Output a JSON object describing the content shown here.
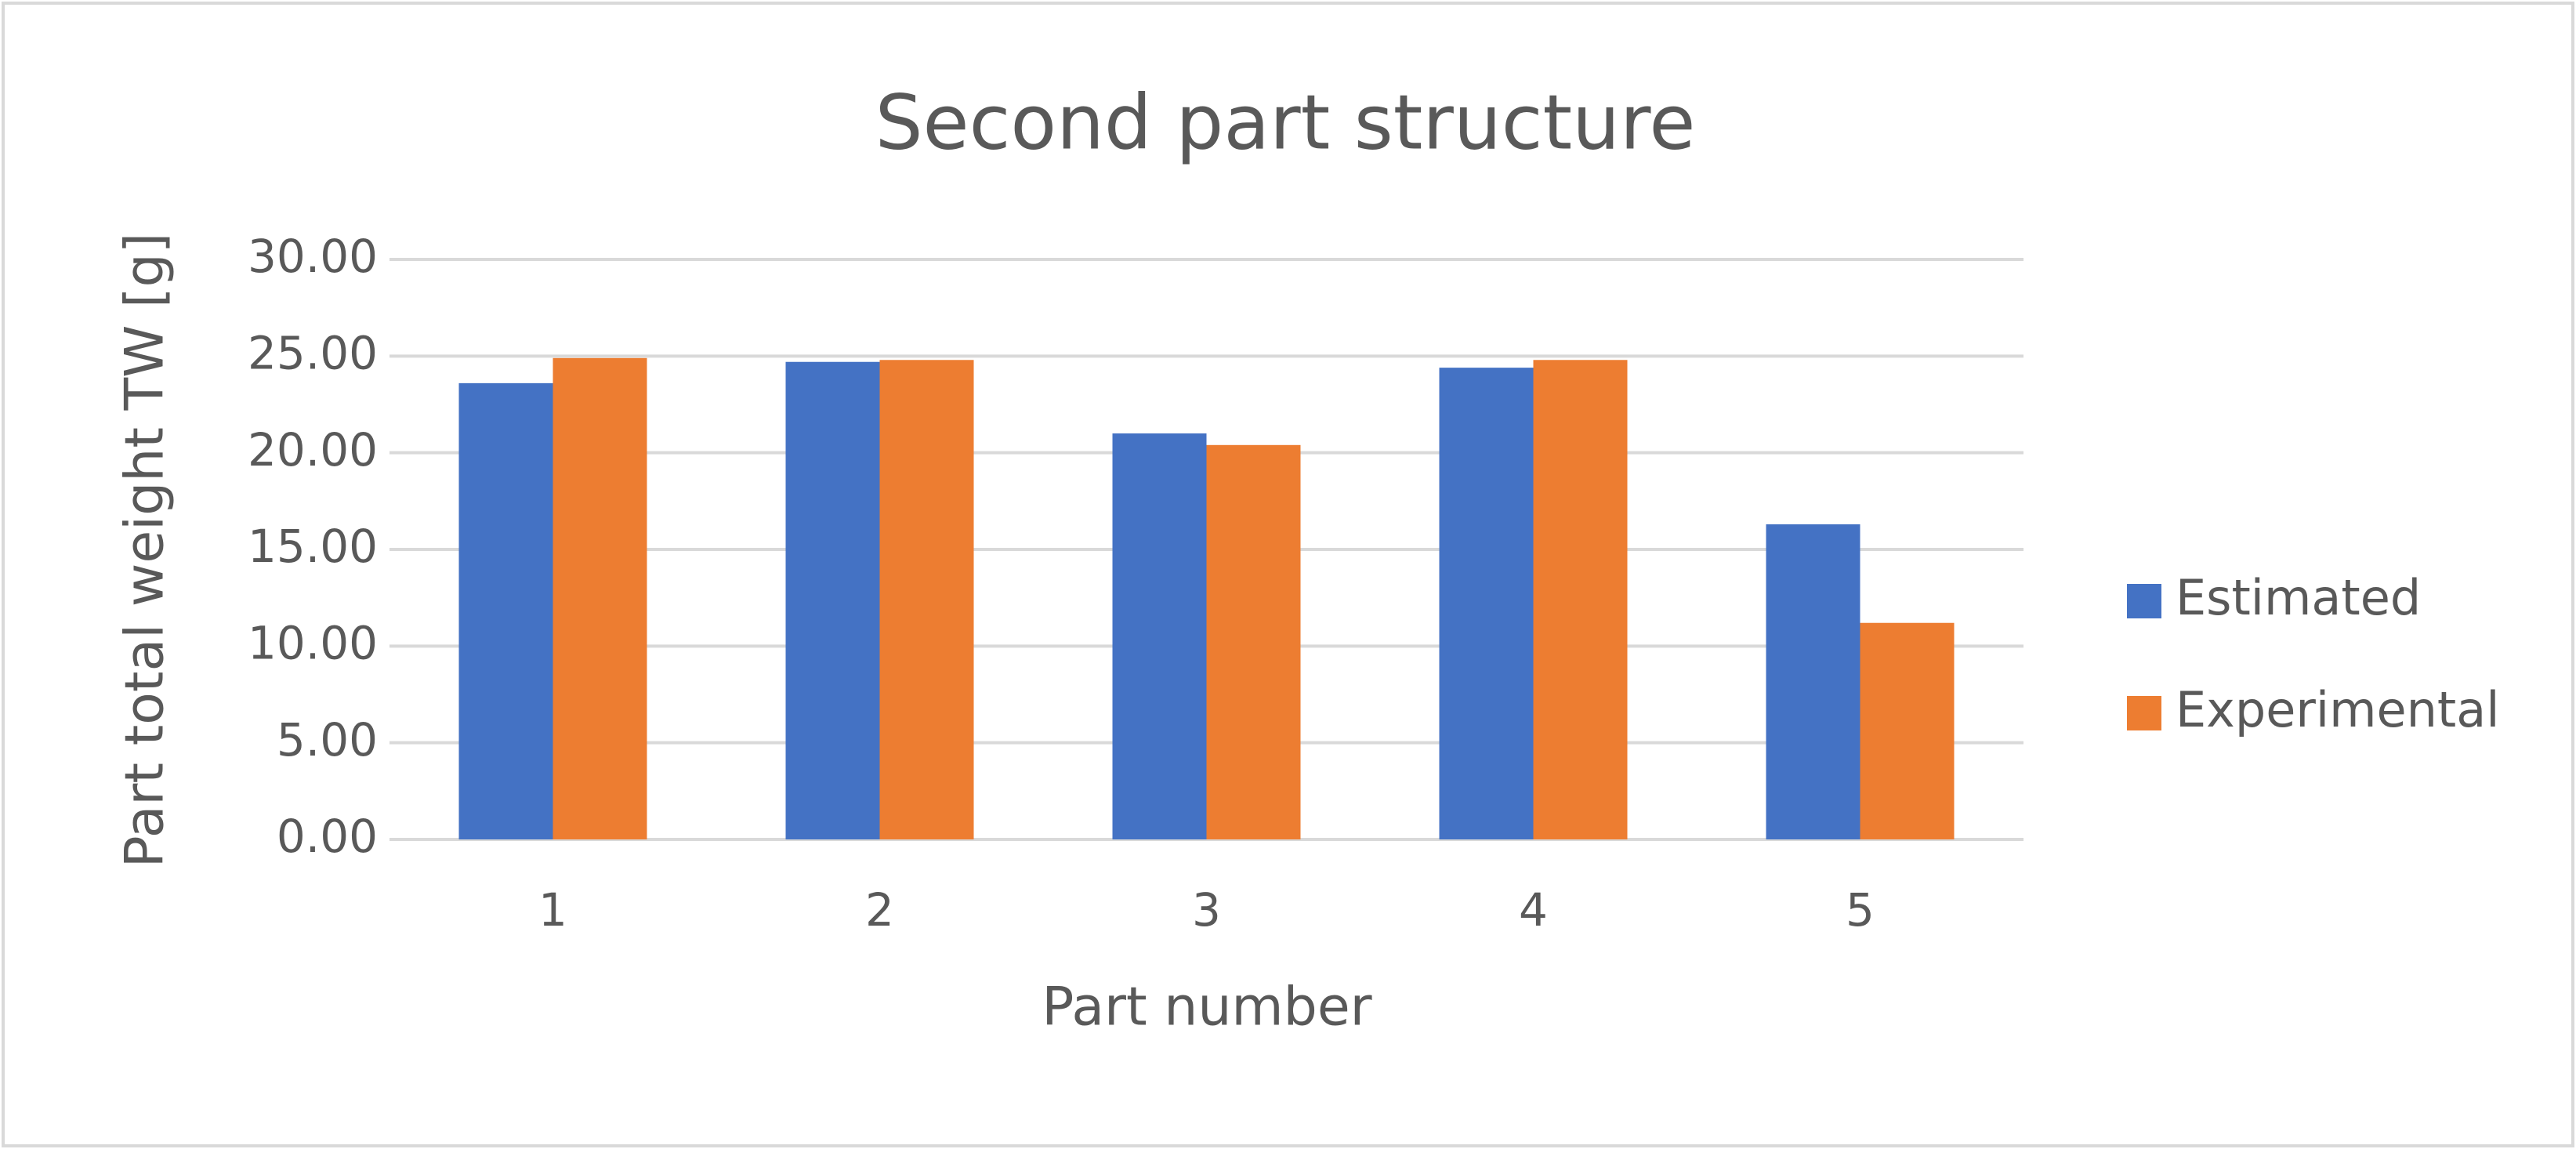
{
  "chart_data": {
    "type": "bar",
    "title": "Second part structure",
    "x_label": "Part number",
    "y_label": "Part total weight TW [g]",
    "categories": [
      "1",
      "2",
      "3",
      "4",
      "5"
    ],
    "series": [
      {
        "name": "Estimated",
        "color": "#4472c4",
        "values": [
          23.6,
          24.7,
          21.0,
          24.4,
          16.3
        ]
      },
      {
        "name": "Experimental",
        "color": "#ed7d31",
        "values": [
          24.9,
          24.8,
          20.4,
          24.8,
          11.2
        ]
      }
    ],
    "ylim": [
      0,
      30
    ],
    "yticks": [
      {
        "value": 0,
        "label": "0.00"
      },
      {
        "value": 5,
        "label": "5.00"
      },
      {
        "value": 10,
        "label": "10.00"
      },
      {
        "value": 15,
        "label": "15.00"
      },
      {
        "value": 20,
        "label": "20.00"
      },
      {
        "value": 25,
        "label": "25.00"
      },
      {
        "value": 30,
        "label": "30.00"
      }
    ],
    "grid": true,
    "legend": "right"
  }
}
